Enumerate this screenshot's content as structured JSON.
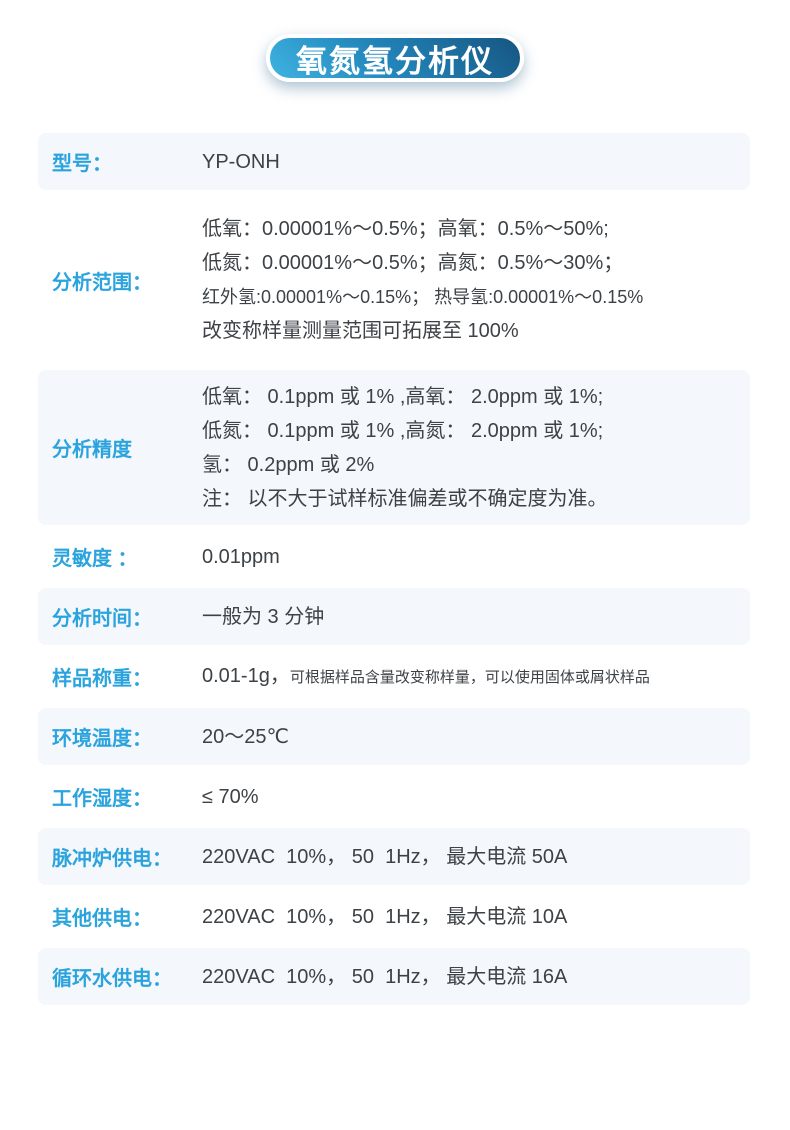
{
  "title_badge": {
    "text": "氧氮氢分析仪",
    "gradient_start": "#3fb3e2",
    "gradient_end": "#175581",
    "text_color": "#ffffff"
  },
  "table": {
    "label_color": "#2ba4de",
    "value_color": "#3d4247",
    "shaded_row_bg": "#f4f7fb",
    "rows": [
      {
        "label": "型号：",
        "lines": [
          [
            {
              "t": "YP-ONH"
            }
          ]
        ]
      },
      {
        "label": "分析范围：",
        "lines": [
          [
            {
              "t": "低氧：0.00001%～0.5%；高氧：0.5%～50%;"
            }
          ],
          [
            {
              "t": "低氮：0.00001%～0.5%；高氮：0.5%～30%；"
            }
          ],
          [
            {
              "t": "红外氢:0.00001%～0.15%； 热导氢:0.00001%～0.15%",
              "cls": "sm"
            }
          ],
          [
            {
              "t": "改变称样量测量范围可拓展至 100%"
            }
          ]
        ]
      },
      {
        "label": "分析精度",
        "lines": [
          [
            {
              "t": "低氧： 0.1ppm 或 1% ,高氧： 2.0ppm 或 1%;"
            }
          ],
          [
            {
              "t": "低氮： 0.1ppm 或 1% ,高氮： 2.0ppm 或 1%;"
            }
          ],
          [
            {
              "t": "氢： 0.2ppm 或 2%"
            }
          ],
          [
            {
              "t": "注： 以不大于试样标准偏差或不确定度为准。"
            }
          ]
        ]
      },
      {
        "label": "灵敏度 ：",
        "lines": [
          [
            {
              "t": "0.01ppm"
            }
          ]
        ]
      },
      {
        "label": "分析时间：",
        "lines": [
          [
            {
              "t": "一般为 3 分钟"
            }
          ]
        ]
      },
      {
        "label": "样品称重：",
        "lines": [
          [
            {
              "t": "0.01-1g，"
            },
            {
              "t": "可根据样品含量改变称样量，可以使用固体或屑状样品",
              "cls": "xs"
            }
          ]
        ]
      },
      {
        "label": "环境温度：",
        "lines": [
          [
            {
              "t": "20～25℃"
            }
          ]
        ]
      },
      {
        "label": "工作湿度：",
        "lines": [
          [
            {
              "t": "≤ 70%"
            }
          ]
        ]
      },
      {
        "label": "脉冲炉供电：",
        "lines": [
          [
            {
              "t": "220VAC  10%， 50  1Hz， 最大电流 50A"
            }
          ]
        ]
      },
      {
        "label": "其他供电：",
        "lines": [
          [
            {
              "t": "220VAC  10%， 50  1Hz， 最大电流 10A"
            }
          ]
        ]
      },
      {
        "label": "循环水供电：",
        "lines": [
          [
            {
              "t": "220VAC  10%， 50  1Hz， 最大电流 16A"
            }
          ]
        ]
      }
    ]
  }
}
